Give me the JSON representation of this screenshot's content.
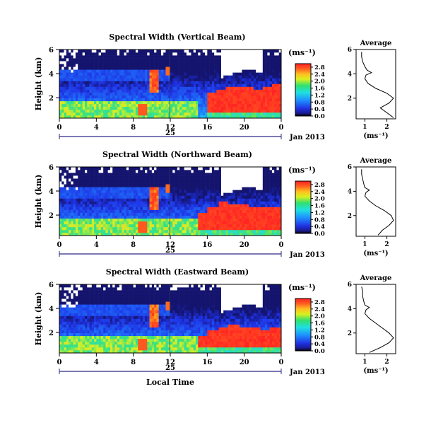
{
  "chart_data": {
    "type": "heatmap",
    "panels": [
      {
        "title": "Spectral Width (Vertical Beam)",
        "ylabel": "Height (km)",
        "yticks": [
          "2",
          "4",
          "6"
        ],
        "ylim": [
          0.3,
          6
        ],
        "xticks": [
          "0",
          "4",
          "8",
          "12",
          "16",
          "20",
          "0"
        ],
        "xlim": [
          0,
          24
        ],
        "date_label": "25",
        "month_label": "Jan 2013",
        "colorbar": {
          "unit": "(ms⁻¹)",
          "ticks": [
            "0.0",
            "0.4",
            "0.8",
            "1.2",
            "1.6",
            "2.0",
            "2.4",
            "2.8"
          ],
          "range": [
            0,
            3.0
          ]
        },
        "profile": {
          "title": "Average",
          "xlabel": "(ms⁻¹)",
          "xticks": [
            "1",
            "2"
          ],
          "xlim": [
            0.6,
            2.4
          ],
          "yticks": [
            "2",
            "4",
            "6"
          ],
          "ylim": [
            0.3,
            6
          ],
          "height_km": [
            0.4,
            0.8,
            1.2,
            1.6,
            2.0,
            2.4,
            2.8,
            3.2,
            3.6,
            3.9,
            4.1,
            4.3,
            4.6,
            5.0,
            5.4,
            5.8
          ],
          "width_ms": [
            2.3,
            2.0,
            1.7,
            2.1,
            2.3,
            2.0,
            1.5,
            1.15,
            1.0,
            1.05,
            1.3,
            1.1,
            1.0,
            0.9,
            0.85,
            0.85
          ]
        },
        "high_width_region": {
          "time_start_h": 16,
          "time_end_h": 24,
          "height_top_km": [
            2.4,
            2.6,
            2.9,
            3.0,
            2.8,
            2.7,
            2.9,
            3.1
          ]
        }
      },
      {
        "title": "Spectral Width (Northward Beam)",
        "ylabel": "Height (km)",
        "yticks": [
          "2",
          "4",
          "6"
        ],
        "ylim": [
          0.3,
          6
        ],
        "xticks": [
          "0",
          "4",
          "8",
          "12",
          "16",
          "20",
          "0"
        ],
        "xlim": [
          0,
          24
        ],
        "date_label": "25",
        "month_label": "Jan 2013",
        "colorbar": {
          "unit": "(ms⁻¹)",
          "ticks": [
            "0.0",
            "0.4",
            "0.8",
            "1.2",
            "1.6",
            "2.0",
            "2.4",
            "2.8"
          ],
          "range": [
            0,
            3.0
          ]
        },
        "profile": {
          "title": "Average",
          "xlabel": "(ms⁻¹)",
          "xticks": [
            "1",
            "2"
          ],
          "xlim": [
            0.6,
            2.4
          ],
          "yticks": [
            "2",
            "4",
            "6"
          ],
          "ylim": [
            0.3,
            6
          ],
          "height_km": [
            0.4,
            0.8,
            1.2,
            1.6,
            2.0,
            2.4,
            2.8,
            3.2,
            3.6,
            3.9,
            4.1,
            4.3,
            4.6,
            5.0,
            5.4,
            5.8
          ],
          "width_ms": [
            1.6,
            1.8,
            2.1,
            2.3,
            2.2,
            1.9,
            1.5,
            1.2,
            1.0,
            1.05,
            1.2,
            1.0,
            0.95,
            0.9,
            0.85,
            0.85
          ]
        },
        "high_width_region": {
          "time_start_h": 15,
          "time_end_h": 24,
          "height_top_km": [
            2.2,
            2.7,
            3.1,
            3.0,
            2.9,
            2.7,
            2.6,
            2.7
          ]
        }
      },
      {
        "title": "Spectral Width (Eastward Beam)",
        "ylabel": "Height (km)",
        "yticks": [
          "2",
          "4",
          "6"
        ],
        "ylim": [
          0.3,
          6
        ],
        "xticks": [
          "0",
          "4",
          "8",
          "12",
          "16",
          "20",
          "0"
        ],
        "xlim": [
          0,
          24
        ],
        "date_label": "25",
        "month_label": "Jan 2013",
        "xlabel": "Local Time",
        "colorbar": {
          "unit": "(ms⁻¹)",
          "ticks": [
            "0.0",
            "0.4",
            "0.8",
            "1.2",
            "1.6",
            "2.0",
            "2.4",
            "2.8"
          ],
          "range": [
            0,
            3.0
          ]
        },
        "profile": {
          "title": "Average",
          "xlabel": "(ms⁻¹)",
          "xticks": [
            "1",
            "2"
          ],
          "xlim": [
            0.6,
            2.4
          ],
          "yticks": [
            "2",
            "4",
            "6"
          ],
          "ylim": [
            0.3,
            6
          ],
          "height_km": [
            0.4,
            0.8,
            1.2,
            1.6,
            2.0,
            2.4,
            2.8,
            3.2,
            3.6,
            3.9,
            4.1,
            4.3,
            4.6,
            5.0,
            5.4,
            5.8
          ],
          "width_ms": [
            1.2,
            1.7,
            2.1,
            2.3,
            2.1,
            1.8,
            1.5,
            1.2,
            1.0,
            1.05,
            1.2,
            1.0,
            0.95,
            0.9,
            0.9,
            0.85
          ]
        },
        "high_width_region": {
          "time_start_h": 15,
          "time_end_h": 24,
          "height_top_km": [
            1.8,
            2.2,
            2.5,
            2.6,
            2.5,
            2.4,
            2.3,
            2.4
          ]
        }
      }
    ]
  }
}
